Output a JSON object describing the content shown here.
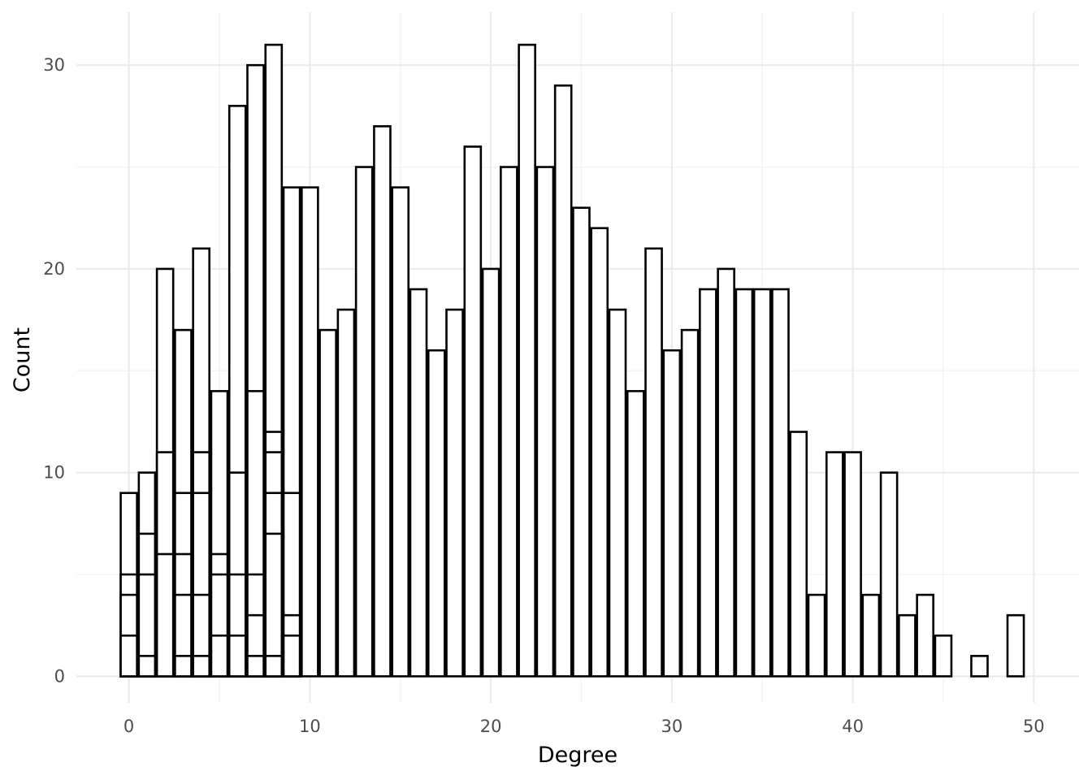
{
  "chart_data": {
    "type": "bar",
    "subtype": "stacked-histogram",
    "title": "",
    "xlabel": "Degree",
    "ylabel": "Count",
    "xlim": [
      -2.9,
      52.5
    ],
    "ylim": [
      -1.3,
      32.6
    ],
    "x_ticks": [
      0,
      10,
      20,
      30,
      40,
      50
    ],
    "y_ticks": [
      0,
      10,
      20,
      30
    ],
    "grid": true,
    "fill_color": "#ffffff",
    "outline_color": "#000000",
    "bin_width": 1,
    "bars": [
      {
        "x": 0,
        "stack": [
          2,
          4,
          5,
          9
        ]
      },
      {
        "x": 1,
        "stack": [
          1,
          5,
          7,
          10
        ]
      },
      {
        "x": 2,
        "stack": [
          6,
          11,
          20
        ]
      },
      {
        "x": 3,
        "stack": [
          1,
          4,
          6,
          9,
          17
        ]
      },
      {
        "x": 4,
        "stack": [
          1,
          4,
          9,
          11,
          21
        ]
      },
      {
        "x": 5,
        "stack": [
          2,
          5,
          6,
          14
        ]
      },
      {
        "x": 6,
        "stack": [
          2,
          5,
          10,
          28
        ]
      },
      {
        "x": 7,
        "stack": [
          1,
          3,
          5,
          14,
          30
        ]
      },
      {
        "x": 8,
        "stack": [
          1,
          7,
          9,
          11,
          12,
          31
        ]
      },
      {
        "x": 9,
        "stack": [
          2,
          3,
          9,
          24
        ]
      },
      {
        "x": 10,
        "stack": [
          24
        ]
      },
      {
        "x": 11,
        "stack": [
          17
        ]
      },
      {
        "x": 12,
        "stack": [
          18
        ]
      },
      {
        "x": 13,
        "stack": [
          25
        ]
      },
      {
        "x": 14,
        "stack": [
          27
        ]
      },
      {
        "x": 15,
        "stack": [
          24
        ]
      },
      {
        "x": 16,
        "stack": [
          19
        ]
      },
      {
        "x": 17,
        "stack": [
          16
        ]
      },
      {
        "x": 18,
        "stack": [
          18
        ]
      },
      {
        "x": 19,
        "stack": [
          26
        ]
      },
      {
        "x": 20,
        "stack": [
          20
        ]
      },
      {
        "x": 21,
        "stack": [
          25
        ]
      },
      {
        "x": 22,
        "stack": [
          31
        ]
      },
      {
        "x": 23,
        "stack": [
          25
        ]
      },
      {
        "x": 24,
        "stack": [
          29
        ]
      },
      {
        "x": 25,
        "stack": [
          23
        ]
      },
      {
        "x": 26,
        "stack": [
          22
        ]
      },
      {
        "x": 27,
        "stack": [
          18
        ]
      },
      {
        "x": 28,
        "stack": [
          14
        ]
      },
      {
        "x": 29,
        "stack": [
          21
        ]
      },
      {
        "x": 30,
        "stack": [
          16
        ]
      },
      {
        "x": 31,
        "stack": [
          17
        ]
      },
      {
        "x": 32,
        "stack": [
          19
        ]
      },
      {
        "x": 33,
        "stack": [
          20
        ]
      },
      {
        "x": 34,
        "stack": [
          19
        ]
      },
      {
        "x": 35,
        "stack": [
          19
        ]
      },
      {
        "x": 36,
        "stack": [
          19
        ]
      },
      {
        "x": 37,
        "stack": [
          12
        ]
      },
      {
        "x": 38,
        "stack": [
          4
        ]
      },
      {
        "x": 39,
        "stack": [
          11
        ]
      },
      {
        "x": 40,
        "stack": [
          11
        ]
      },
      {
        "x": 41,
        "stack": [
          4
        ]
      },
      {
        "x": 42,
        "stack": [
          10
        ]
      },
      {
        "x": 43,
        "stack": [
          3
        ]
      },
      {
        "x": 44,
        "stack": [
          4
        ]
      },
      {
        "x": 45,
        "stack": [
          2
        ]
      },
      {
        "x": 47,
        "stack": [
          1
        ]
      },
      {
        "x": 49,
        "stack": [
          3
        ]
      }
    ]
  }
}
